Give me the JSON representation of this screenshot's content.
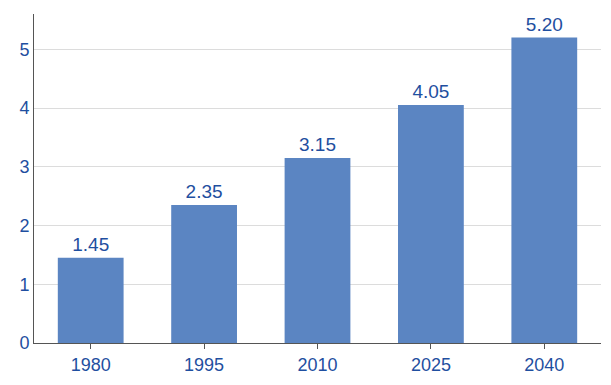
{
  "chart_data": {
    "type": "bar",
    "categories": [
      "1980",
      "1995",
      "2010",
      "2025",
      "2040"
    ],
    "values": [
      1.45,
      2.35,
      3.15,
      4.05,
      5.2
    ],
    "value_labels": [
      "1.45",
      "2.35",
      "3.15",
      "4.05",
      "5.20"
    ],
    "color": "#5b85c2",
    "ylim": [
      0,
      5.6
    ],
    "yticks": [
      0,
      1,
      2,
      3,
      4,
      5
    ],
    "grid": true,
    "data_labels": true
  }
}
